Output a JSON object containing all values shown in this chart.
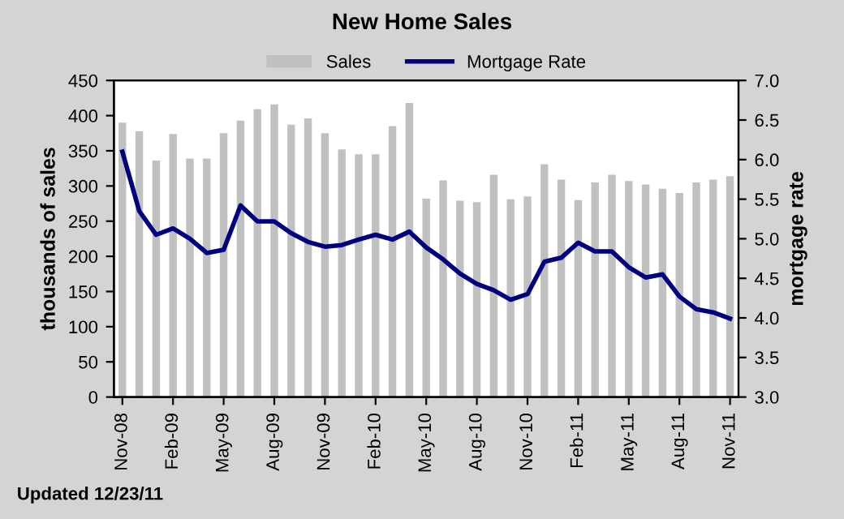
{
  "chart_data": {
    "type": "bar",
    "title": "New Home Sales",
    "ylabel": "thousands of sales",
    "y2label": "mortgage rate",
    "categories": [
      "Nov-08",
      null,
      null,
      "Feb-09",
      null,
      null,
      "May-09",
      null,
      null,
      "Aug-09",
      null,
      null,
      "Nov-09",
      null,
      null,
      "Feb-10",
      null,
      null,
      "May-10",
      null,
      null,
      "Aug-10",
      null,
      null,
      "Nov-10",
      null,
      null,
      "Feb-11",
      null,
      null,
      "May-11",
      null,
      null,
      "Aug-11",
      null,
      null,
      "Nov-11"
    ],
    "series": [
      {
        "name": "Sales",
        "color": "#c0c0c0",
        "values": [
          390,
          378,
          336,
          374,
          339,
          339,
          375,
          393,
          409,
          416,
          387,
          396,
          375,
          352,
          345,
          345,
          385,
          418,
          282,
          308,
          279,
          277,
          316,
          281,
          285,
          331,
          309,
          280,
          305,
          316,
          307,
          302,
          296,
          290,
          305,
          309,
          314
        ]
      },
      {
        "name": "Mortgage Rate",
        "type": "line",
        "axis": "y2",
        "color": "#000080",
        "values": [
          6.1,
          5.35,
          5.05,
          5.13,
          5.0,
          4.82,
          4.86,
          5.42,
          5.22,
          5.22,
          5.07,
          4.96,
          4.9,
          4.92,
          4.99,
          5.05,
          4.99,
          5.09,
          4.89,
          4.74,
          4.56,
          4.43,
          4.35,
          4.23,
          4.3,
          4.71,
          4.76,
          4.95,
          4.84,
          4.84,
          4.64,
          4.51,
          4.55,
          4.27,
          4.11,
          4.07,
          3.99
        ]
      }
    ],
    "ylim": [
      0,
      450
    ],
    "yticks": [
      0,
      50,
      100,
      150,
      200,
      250,
      300,
      350,
      400,
      450
    ],
    "y2lim": [
      3.0,
      7.0
    ],
    "y2ticks": [
      {
        "value": 3.0,
        "label": "3.0"
      },
      {
        "value": 3.5,
        "label": "3.5"
      },
      {
        "value": 4.0,
        "label": "4.0"
      },
      {
        "value": 4.5,
        "label": "4.5"
      },
      {
        "value": 5.0,
        "label": "5.0"
      },
      {
        "value": 5.5,
        "label": "5.5"
      },
      {
        "value": 6.0,
        "label": "6.0"
      },
      {
        "value": 6.5,
        "label": "6.5"
      },
      {
        "value": 7.0,
        "label": "7.0"
      }
    ],
    "legend": "top",
    "grid": false,
    "annotations": [
      "Updated 12/23/11"
    ]
  }
}
